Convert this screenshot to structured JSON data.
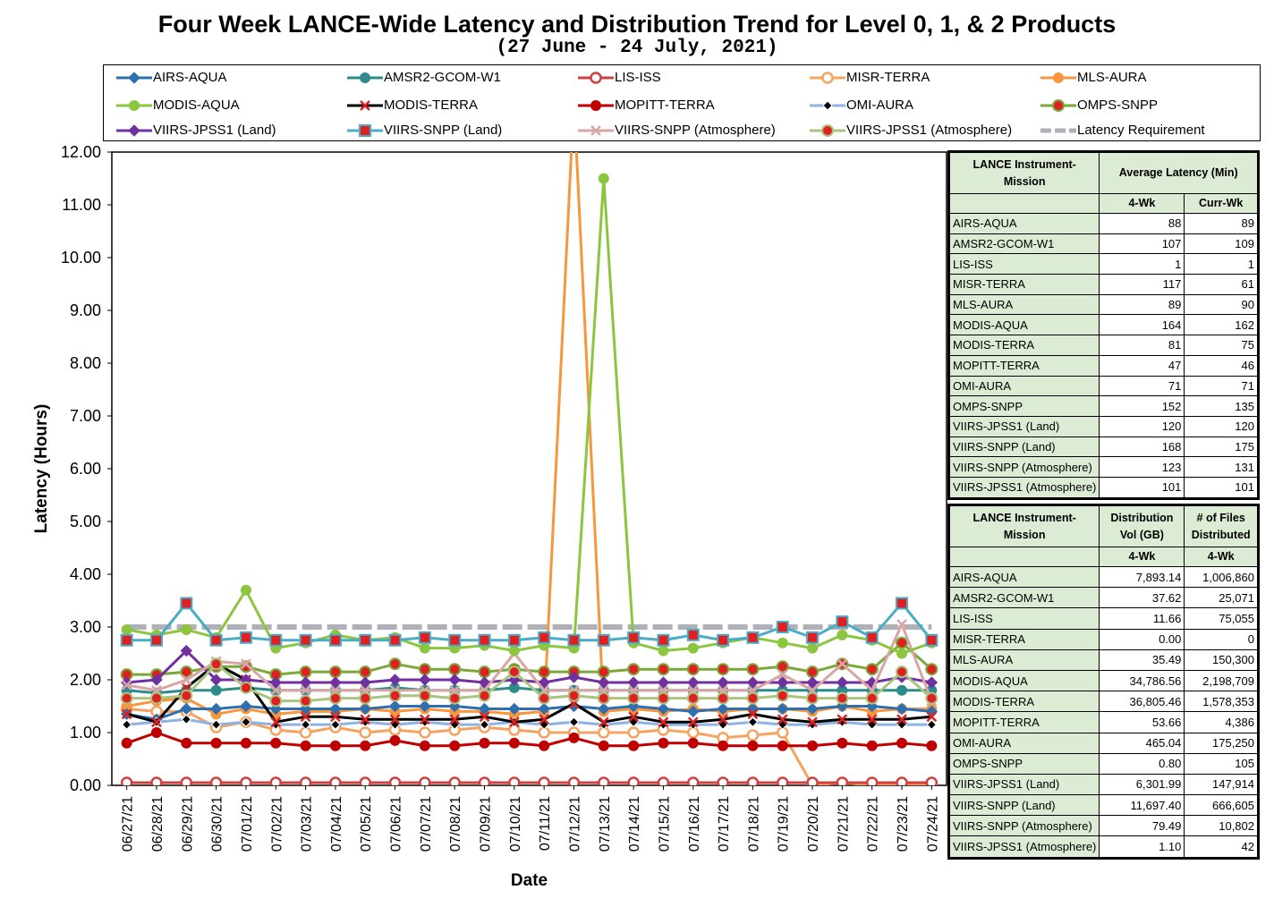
{
  "title": "Four Week LANCE-Wide Latency and Distribution Trend for Level 0, 1, & 2 Products",
  "subtitle": "(27 June   - 24 July, 2021)",
  "chart_data": {
    "type": "line",
    "xlabel": "Date",
    "ylabel": "Latency (Hours)",
    "ylim": [
      0,
      12
    ],
    "yticks": [
      "0.00",
      "1.00",
      "2.00",
      "3.00",
      "4.00",
      "5.00",
      "6.00",
      "7.00",
      "8.00",
      "9.00",
      "10.00",
      "11.00",
      "12.00"
    ],
    "categories": [
      "06/27/21",
      "06/28/21",
      "06/29/21",
      "06/30/21",
      "07/01/21",
      "07/02/21",
      "07/03/21",
      "07/04/21",
      "07/05/21",
      "07/06/21",
      "07/07/21",
      "07/08/21",
      "07/09/21",
      "07/10/21",
      "07/11/21",
      "07/12/21",
      "07/13/21",
      "07/14/21",
      "07/15/21",
      "07/16/21",
      "07/17/21",
      "07/18/21",
      "07/19/21",
      "07/20/21",
      "07/21/21",
      "07/22/21",
      "07/23/21",
      "07/24/21"
    ],
    "legend_position": "top",
    "grid": false,
    "series": [
      {
        "name": "AIRS-AQUA",
        "color": "#2e6fb0",
        "marker": "diamond",
        "values": [
          1.35,
          1.25,
          1.45,
          1.45,
          1.5,
          1.45,
          1.45,
          1.45,
          1.45,
          1.5,
          1.5,
          1.5,
          1.45,
          1.45,
          1.45,
          1.5,
          1.45,
          1.5,
          1.45,
          1.4,
          1.45,
          1.45,
          1.45,
          1.45,
          1.5,
          1.5,
          1.45,
          1.4
        ]
      },
      {
        "name": "AMSR2-GCOM-W1",
        "color": "#2e8b8b",
        "marker": "circle",
        "values": [
          1.8,
          1.75,
          1.8,
          1.8,
          1.85,
          1.8,
          1.8,
          1.8,
          1.8,
          1.85,
          1.8,
          1.8,
          1.8,
          1.85,
          1.8,
          1.8,
          1.8,
          1.8,
          1.8,
          1.8,
          1.8,
          1.8,
          1.8,
          1.8,
          1.8,
          1.8,
          1.8,
          1.8
        ]
      },
      {
        "name": "LIS-ISS",
        "color": "#d04040",
        "marker": "ring",
        "values": [
          0.05,
          0.05,
          0.05,
          0.05,
          0.05,
          0.05,
          0.05,
          0.05,
          0.05,
          0.05,
          0.05,
          0.05,
          0.05,
          0.05,
          0.05,
          0.05,
          0.05,
          0.05,
          0.05,
          0.05,
          0.05,
          0.05,
          0.05,
          0.05,
          0.05,
          0.05,
          0.05,
          0.05
        ]
      },
      {
        "name": "MISR-TERRA",
        "color": "#f4a460",
        "marker": "ring",
        "values": [
          1.45,
          1.4,
          1.4,
          1.1,
          1.2,
          1.05,
          1.0,
          1.1,
          1.0,
          1.05,
          1.0,
          1.05,
          1.1,
          1.05,
          1.0,
          1.0,
          1.0,
          1.0,
          1.05,
          1.0,
          0.9,
          0.95,
          1.0,
          0.0,
          0.05,
          0.0,
          0.0,
          0.0
        ]
      },
      {
        "name": "MLS-AURA",
        "color": "#f7963d",
        "marker": "circle",
        "values": [
          1.5,
          1.6,
          1.65,
          1.35,
          1.45,
          1.35,
          1.4,
          1.4,
          1.45,
          1.4,
          1.45,
          1.4,
          1.4,
          1.35,
          1.4,
          13.0,
          1.4,
          1.45,
          1.4,
          1.45,
          1.4,
          1.45,
          1.45,
          1.4,
          1.5,
          1.4,
          1.45,
          1.45
        ]
      },
      {
        "name": "MODIS-AQUA",
        "color": "#8cc63f",
        "marker": "circle",
        "values": [
          2.95,
          2.85,
          2.95,
          2.8,
          3.7,
          2.6,
          2.7,
          2.85,
          2.75,
          2.8,
          2.6,
          2.6,
          2.65,
          2.55,
          2.65,
          2.6,
          11.5,
          2.7,
          2.55,
          2.6,
          2.7,
          2.8,
          2.7,
          2.6,
          2.85,
          2.75,
          2.5,
          2.7
        ]
      },
      {
        "name": "MODIS-TERRA",
        "color": "#000000",
        "marker": "x",
        "values": [
          1.35,
          1.2,
          1.85,
          2.3,
          2.0,
          1.2,
          1.3,
          1.3,
          1.25,
          1.25,
          1.25,
          1.25,
          1.3,
          1.2,
          1.25,
          1.55,
          1.2,
          1.3,
          1.2,
          1.2,
          1.25,
          1.35,
          1.25,
          1.2,
          1.25,
          1.25,
          1.25,
          1.3
        ]
      },
      {
        "name": "MOPITT-TERRA",
        "color": "#c00000",
        "marker": "circle",
        "values": [
          0.8,
          1.0,
          0.8,
          0.8,
          0.8,
          0.8,
          0.75,
          0.75,
          0.75,
          0.85,
          0.75,
          0.75,
          0.8,
          0.8,
          0.75,
          0.9,
          0.75,
          0.75,
          0.8,
          0.8,
          0.75,
          0.75,
          0.75,
          0.75,
          0.8,
          0.75,
          0.8,
          0.75
        ]
      },
      {
        "name": "OMI-AURA",
        "color": "#8db3e2",
        "marker": "smalldiamond",
        "values": [
          1.15,
          1.2,
          1.25,
          1.15,
          1.2,
          1.15,
          1.15,
          1.15,
          1.2,
          1.15,
          1.2,
          1.15,
          1.15,
          1.2,
          1.15,
          1.2,
          1.15,
          1.2,
          1.15,
          1.15,
          1.15,
          1.2,
          1.15,
          1.15,
          1.2,
          1.15,
          1.15,
          1.15
        ]
      },
      {
        "name": "OMPS-SNPP",
        "color": "#7aa83a",
        "marker": "dot",
        "values": [
          2.1,
          2.1,
          2.15,
          2.25,
          2.25,
          2.1,
          2.15,
          2.15,
          2.15,
          2.3,
          2.2,
          2.2,
          2.15,
          2.2,
          2.15,
          2.15,
          2.15,
          2.2,
          2.2,
          2.2,
          2.2,
          2.2,
          2.25,
          2.15,
          2.3,
          2.2,
          2.7,
          2.2
        ]
      },
      {
        "name": "VIIRS-JPSS1 (Land)",
        "color": "#7030a0",
        "marker": "diamond",
        "values": [
          1.95,
          2.0,
          2.55,
          2.0,
          2.0,
          1.95,
          1.95,
          1.95,
          1.95,
          2.0,
          2.0,
          2.0,
          1.95,
          2.0,
          1.95,
          2.05,
          1.95,
          1.95,
          1.95,
          1.95,
          1.95,
          1.95,
          1.95,
          1.95,
          1.95,
          1.95,
          2.05,
          1.95
        ]
      },
      {
        "name": "VIIRS-SNPP (Land)",
        "color": "#4bacc6",
        "marker": "square",
        "values": [
          2.75,
          2.75,
          3.45,
          2.75,
          2.8,
          2.75,
          2.75,
          2.75,
          2.75,
          2.75,
          2.8,
          2.75,
          2.75,
          2.75,
          2.8,
          2.75,
          2.75,
          2.8,
          2.75,
          2.85,
          2.75,
          2.8,
          3.0,
          2.8,
          3.1,
          2.8,
          3.45,
          2.75
        ]
      },
      {
        "name": "VIIRS-SNPP (Atmosphere)",
        "color": "#d9a6a6",
        "marker": "x",
        "values": [
          1.9,
          1.8,
          2.0,
          2.35,
          2.3,
          1.8,
          1.8,
          1.8,
          1.8,
          1.8,
          1.8,
          1.8,
          1.8,
          2.5,
          1.8,
          1.8,
          1.8,
          1.8,
          1.8,
          1.8,
          1.8,
          1.8,
          2.1,
          1.8,
          2.3,
          1.8,
          3.05,
          1.6
        ]
      },
      {
        "name": "VIIRS-JPSS1 (Atmosphere)",
        "color": "#a9c47f",
        "marker": "dot",
        "values": [
          1.65,
          1.65,
          1.7,
          2.3,
          1.85,
          1.6,
          1.6,
          1.65,
          1.65,
          1.7,
          1.7,
          1.65,
          1.7,
          2.15,
          1.65,
          1.7,
          1.65,
          1.65,
          1.65,
          1.65,
          1.65,
          1.65,
          1.7,
          1.65,
          1.65,
          1.65,
          2.15,
          1.65
        ]
      },
      {
        "name": "Latency Requirement",
        "color": "#b0b0b8",
        "marker": "none",
        "dashed": true,
        "values": [
          3,
          3,
          3,
          3,
          3,
          3,
          3,
          3,
          3,
          3,
          3,
          3,
          3,
          3,
          3,
          3,
          3,
          3,
          3,
          3,
          3,
          3,
          3,
          3,
          3,
          3,
          3,
          3
        ]
      }
    ]
  },
  "latency_table": {
    "header1": "LANCE Instrument-Mission",
    "header2": "Average Latency (Min)",
    "col1": "4-Wk",
    "col2": "Curr-Wk",
    "rows": [
      {
        "name": "AIRS-AQUA",
        "a": "88",
        "b": "89"
      },
      {
        "name": "AMSR2-GCOM-W1",
        "a": "107",
        "b": "109"
      },
      {
        "name": "LIS-ISS",
        "a": "1",
        "b": "1"
      },
      {
        "name": "MISR-TERRA",
        "a": "117",
        "b": "61"
      },
      {
        "name": "MLS-AURA",
        "a": "89",
        "b": "90"
      },
      {
        "name": "MODIS-AQUA",
        "a": "164",
        "b": "162"
      },
      {
        "name": "MODIS-TERRA",
        "a": "81",
        "b": "75"
      },
      {
        "name": "MOPITT-TERRA",
        "a": "47",
        "b": "46"
      },
      {
        "name": "OMI-AURA",
        "a": "71",
        "b": "71"
      },
      {
        "name": "OMPS-SNPP",
        "a": "152",
        "b": "135"
      },
      {
        "name": "VIIRS-JPSS1 (Land)",
        "a": "120",
        "b": "120"
      },
      {
        "name": "VIIRS-SNPP (Land)",
        "a": "168",
        "b": "175"
      },
      {
        "name": "VIIRS-SNPP (Atmosphere)",
        "a": "123",
        "b": "131"
      },
      {
        "name": "VIIRS-JPSS1 (Atmosphere)",
        "a": "101",
        "b": "101"
      }
    ]
  },
  "distribution_table": {
    "header1": "LANCE Instrument-Mission",
    "header2": "Distribution Vol (GB)",
    "header3": "# of Files Distributed",
    "col1": "4-Wk",
    "col2": "4-Wk",
    "rows": [
      {
        "name": "AIRS-AQUA",
        "a": "7,893.14",
        "b": "1,006,860"
      },
      {
        "name": "AMSR2-GCOM-W1",
        "a": "37.62",
        "b": "25,071"
      },
      {
        "name": "LIS-ISS",
        "a": "11.66",
        "b": "75,055"
      },
      {
        "name": "MISR-TERRA",
        "a": "0.00",
        "b": "0"
      },
      {
        "name": "MLS-AURA",
        "a": "35.49",
        "b": "150,300"
      },
      {
        "name": "MODIS-AQUA",
        "a": "34,786.56",
        "b": "2,198,709"
      },
      {
        "name": "MODIS-TERRA",
        "a": "36,805.46",
        "b": "1,578,353"
      },
      {
        "name": "MOPITT-TERRA",
        "a": "53.66",
        "b": "4,386"
      },
      {
        "name": "OMI-AURA",
        "a": "465.04",
        "b": "175,250"
      },
      {
        "name": "OMPS-SNPP",
        "a": "0.80",
        "b": "105"
      },
      {
        "name": "VIIRS-JPSS1 (Land)",
        "a": "6,301.99",
        "b": "147,914"
      },
      {
        "name": "VIIRS-SNPP (Land)",
        "a": "11,697.40",
        "b": "666,605"
      },
      {
        "name": "VIIRS-SNPP (Atmosphere)",
        "a": "79.49",
        "b": "10,802"
      },
      {
        "name": "VIIRS-JPSS1 (Atmosphere)",
        "a": "1.10",
        "b": "42"
      }
    ]
  }
}
